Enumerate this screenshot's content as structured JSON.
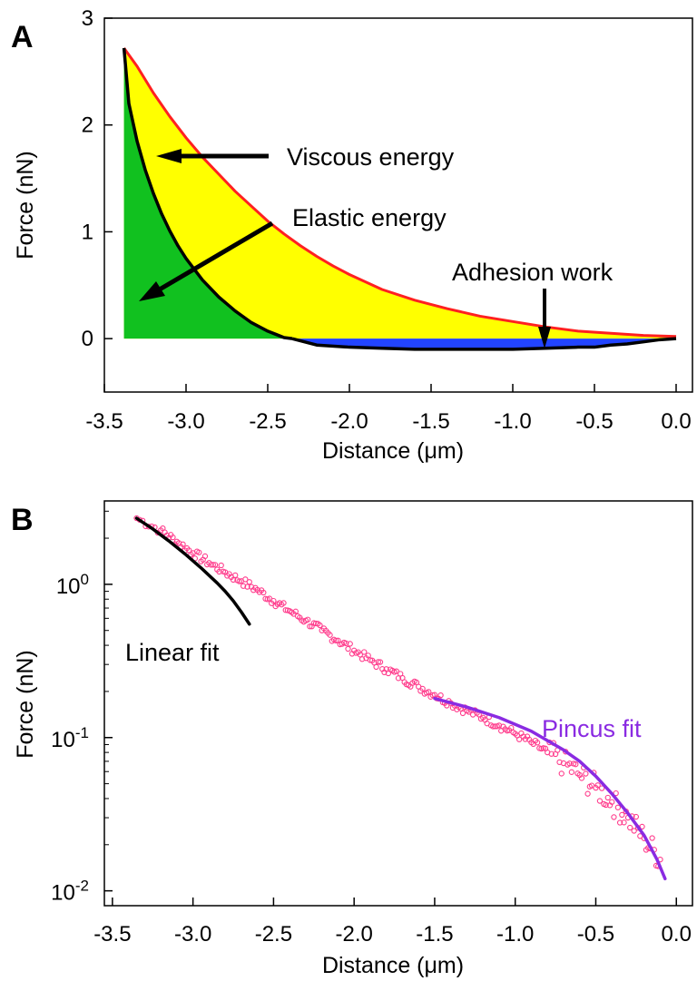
{
  "chart_data": [
    {
      "panel": "A",
      "type": "area",
      "xlabel": "Distance (μm)",
      "ylabel": "Force (nN)",
      "xlim": [
        -3.5,
        0.1
      ],
      "ylim": [
        -0.5,
        3.0
      ],
      "xticks": [
        "-3.5",
        "-3.0",
        "-2.5",
        "-2.0",
        "-1.5",
        "-1.0",
        "-0.5",
        "0.0"
      ],
      "xtick_values": [
        -3.5,
        -3.0,
        -2.5,
        -2.0,
        -1.5,
        -1.0,
        -0.5,
        0.0
      ],
      "yticks": [
        "0",
        "1",
        "2",
        "3"
      ],
      "ytick_values": [
        0,
        1,
        2,
        3
      ],
      "grid": false,
      "series": [
        {
          "color": "#ff2020",
          "fill": "#ffff00",
          "x": [
            -3.38,
            -3.3,
            -3.2,
            -3.1,
            -3.0,
            -2.9,
            -2.8,
            -2.7,
            -2.6,
            -2.5,
            -2.4,
            -2.3,
            -2.2,
            -2.1,
            -2.0,
            -1.8,
            -1.6,
            -1.4,
            -1.2,
            -1.0,
            -0.8,
            -0.6,
            -0.4,
            -0.2,
            0.0
          ],
          "y": [
            2.72,
            2.55,
            2.3,
            2.08,
            1.88,
            1.7,
            1.54,
            1.38,
            1.24,
            1.1,
            0.98,
            0.87,
            0.77,
            0.68,
            0.6,
            0.46,
            0.36,
            0.28,
            0.21,
            0.16,
            0.11,
            0.07,
            0.05,
            0.03,
            0.02
          ]
        },
        {
          "color": "#000000",
          "fill": "#11c11f",
          "x": [
            -3.38,
            -3.35,
            -3.3,
            -3.25,
            -3.2,
            -3.15,
            -3.1,
            -3.05,
            -3.0,
            -2.9,
            -2.8,
            -2.7,
            -2.6,
            -2.5,
            -2.45,
            -2.4,
            -2.35
          ],
          "y": [
            2.72,
            2.2,
            1.85,
            1.58,
            1.36,
            1.17,
            1.01,
            0.87,
            0.75,
            0.55,
            0.39,
            0.26,
            0.15,
            0.07,
            0.04,
            0.01,
            0.0
          ]
        },
        {
          "color": "#000000",
          "fill": "#2244ff",
          "x": [
            -2.35,
            -2.2,
            -2.0,
            -1.8,
            -1.6,
            -1.4,
            -1.2,
            -1.0,
            -0.8,
            -0.6,
            -0.5,
            -0.4,
            -0.3,
            -0.2,
            -0.1,
            0.0
          ],
          "y": [
            0.0,
            -0.06,
            -0.08,
            -0.09,
            -0.1,
            -0.1,
            -0.1,
            -0.1,
            -0.09,
            -0.08,
            -0.08,
            -0.06,
            -0.05,
            -0.03,
            -0.01,
            0.0
          ]
        }
      ],
      "annotations": [
        {
          "text": "Viscous energy",
          "arrow_to": [
            -3.05,
            1.72
          ]
        },
        {
          "text": "Elastic energy",
          "arrow_to": [
            -3.1,
            0.38
          ]
        },
        {
          "text": "Adhesion work",
          "arrow_to": [
            -0.8,
            -0.08
          ]
        }
      ]
    },
    {
      "panel": "B",
      "type": "scatter",
      "xlabel": "Distance (μm)",
      "ylabel": "Force (nN)",
      "yscale": "log",
      "xlim": [
        -3.55,
        0.1
      ],
      "ylim": [
        0.008,
        3.5
      ],
      "xticks": [
        "-3.5",
        "-3.0",
        "-2.5",
        "-2.0",
        "-1.5",
        "-1.0",
        "-0.5",
        "0.0"
      ],
      "xtick_values": [
        -3.5,
        -3.0,
        -2.5,
        -2.0,
        -1.5,
        -1.0,
        -0.5,
        0.0
      ],
      "yticks": [
        "10^0",
        "10^-1",
        "10^-2"
      ],
      "ytick_values": [
        1,
        0.1,
        0.01
      ],
      "grid": false,
      "series": [
        {
          "marker": "open-circle",
          "color": "#ff3c8c",
          "x": [
            -3.35,
            -3.2,
            -3.1,
            -3.0,
            -2.9,
            -2.8,
            -2.7,
            -2.6,
            -2.5,
            -2.4,
            -2.3,
            -2.2,
            -2.1,
            -2.0,
            -1.9,
            -1.8,
            -1.7,
            -1.6,
            -1.5,
            -1.4,
            -1.3,
            -1.2,
            -1.1,
            -1.0,
            -0.9,
            -0.8,
            -0.7,
            -0.6,
            -0.5,
            -0.4,
            -0.3,
            -0.2,
            -0.1
          ],
          "y": [
            2.7,
            2.25,
            1.9,
            1.6,
            1.38,
            1.2,
            1.05,
            0.92,
            0.78,
            0.67,
            0.58,
            0.5,
            0.43,
            0.37,
            0.32,
            0.28,
            0.245,
            0.215,
            0.19,
            0.168,
            0.15,
            0.135,
            0.12,
            0.106,
            0.093,
            0.08,
            0.068,
            0.057,
            0.047,
            0.038,
            0.03,
            0.022,
            0.016
          ]
        },
        {
          "name": "Linear fit",
          "color": "#000000",
          "x": [
            -3.35,
            -3.25,
            -3.15,
            -3.05,
            -2.95,
            -2.85,
            -2.8,
            -2.75,
            -2.7,
            -2.65
          ],
          "y": [
            2.7,
            2.3,
            1.92,
            1.58,
            1.28,
            1.02,
            0.9,
            0.78,
            0.66,
            0.55
          ]
        },
        {
          "name": "Pincus fit",
          "color": "#8a2be2",
          "x": [
            -1.5,
            -1.3,
            -1.1,
            -0.9,
            -0.7,
            -0.6,
            -0.5,
            -0.4,
            -0.3,
            -0.2,
            -0.12,
            -0.07
          ],
          "y": [
            0.18,
            0.158,
            0.135,
            0.11,
            0.083,
            0.07,
            0.056,
            0.043,
            0.032,
            0.023,
            0.016,
            0.012
          ]
        }
      ]
    }
  ],
  "panels": {
    "a": {
      "letter": "A",
      "ylabel": "Force (nN)",
      "xlabel": "Distance (μm)",
      "annot_viscous": "Viscous energy",
      "annot_elastic": "Elastic energy",
      "annot_adhesion": "Adhesion work"
    },
    "b": {
      "letter": "B",
      "ylabel": "Force (nN)",
      "xlabel": "Distance (μm)",
      "annot_linear": "Linear fit",
      "annot_pincus": "Pincus fit"
    }
  },
  "colors": {
    "viscous_fill": "#ffff00",
    "elastic_fill": "#11c11f",
    "adhesion_fill": "#2244ff",
    "approach_line": "#ff2020",
    "scatter": "#ff3c8c",
    "pincus": "#8a2be2"
  }
}
